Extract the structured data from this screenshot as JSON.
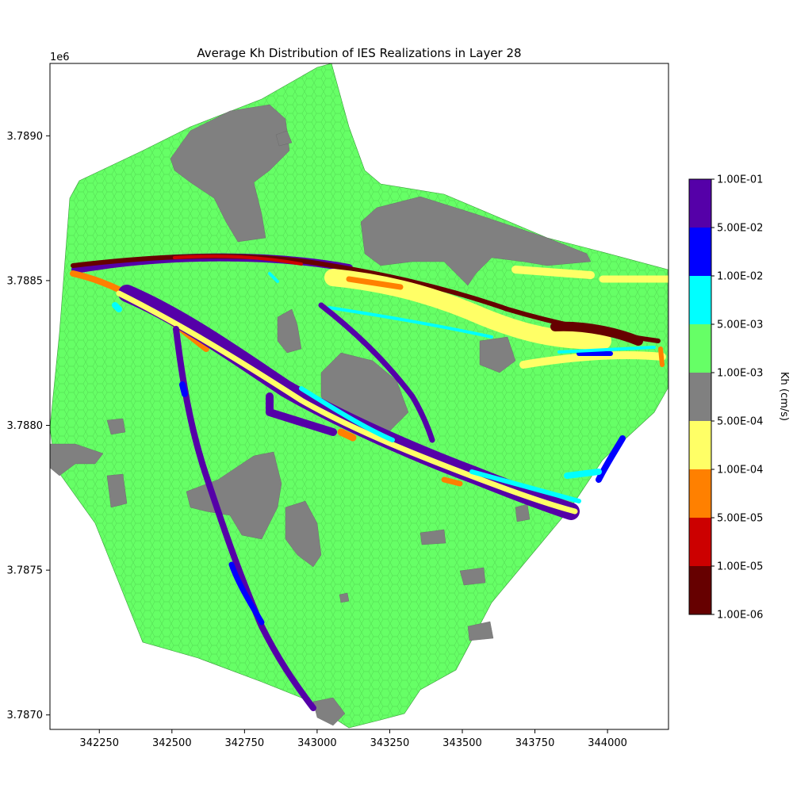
{
  "chart_data": {
    "type": "map",
    "title": "Average Kh Distribution of IES Realizations in Layer 28",
    "xlabel": "",
    "ylabel": "",
    "x_ticks": [
      "342250",
      "342500",
      "342750",
      "343000",
      "343250",
      "343500",
      "343750",
      "344000"
    ],
    "y_ticks": [
      "3.7870",
      "3.7875",
      "3.7880",
      "3.7885",
      "3.7890"
    ],
    "y_offset_label": "1e6",
    "xlim": [
      342080,
      344210
    ],
    "ylim": [
      3786950,
      3789250
    ],
    "colorbar": {
      "label": "Kh (cm/s)",
      "tick_labels": [
        "1.00E-06",
        "1.00E-05",
        "5.00E-05",
        "1.00E-04",
        "5.00E-04",
        "1.00E-03",
        "5.00E-03",
        "1.00E-02",
        "5.00E-02",
        "1.00E-01"
      ],
      "colors": [
        "#660000",
        "#cc0000",
        "#ff8000",
        "#ffff66",
        "#808080",
        "#66ff66",
        "#00ffff",
        "#0000ff",
        "#5500a8"
      ]
    },
    "zones": {
      "background_color": "#66ff66",
      "low_k_color": "#808080"
    }
  }
}
